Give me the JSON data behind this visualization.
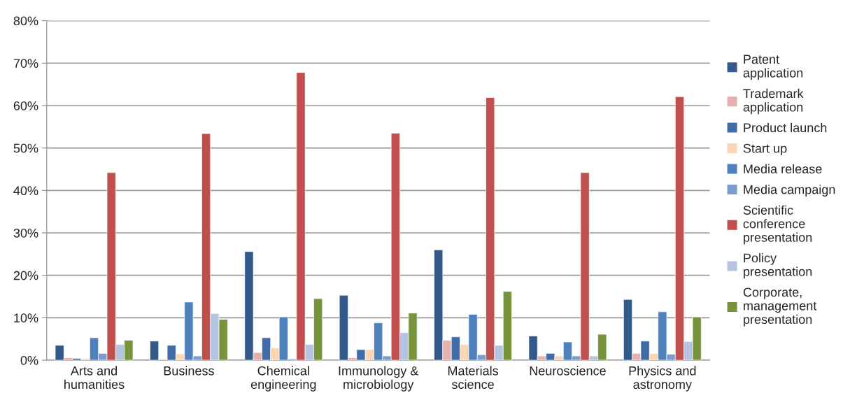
{
  "chart_data": {
    "type": "bar",
    "categories": [
      "Arts and\nhumanities",
      "Business",
      "Chemical\nengineering",
      "Immunology &\nmicrobiology",
      "Materials\nscience",
      "Neuroscience",
      "Physics and\nastronomy"
    ],
    "series": [
      {
        "name": "Patent\napplication",
        "color": "#335a88",
        "values": [
          3.5,
          4.5,
          25.6,
          15.3,
          26.0,
          5.7,
          14.3
        ]
      },
      {
        "name": "Trademark\napplication",
        "color": "#e6b0b0",
        "values": [
          0.6,
          0.2,
          1.8,
          0.6,
          4.7,
          1.0,
          1.6
        ]
      },
      {
        "name": "Product launch",
        "color": "#3f6ca6",
        "values": [
          0.4,
          3.5,
          5.3,
          2.5,
          5.5,
          1.6,
          4.5
        ]
      },
      {
        "name": "Start up",
        "color": "#fcd5b4",
        "values": [
          0.4,
          1.5,
          2.9,
          2.5,
          3.7,
          1.0,
          1.6
        ]
      },
      {
        "name": "Media release",
        "color": "#4f81bd",
        "values": [
          5.3,
          13.7,
          10.2,
          8.8,
          10.8,
          4.3,
          11.4
        ]
      },
      {
        "name": "Media campaign",
        "color": "#7c9ccc",
        "values": [
          1.6,
          1.0,
          0.3,
          1.0,
          1.3,
          1.0,
          1.4
        ]
      },
      {
        "name": "Scientific\nconference\npresentation",
        "color": "#c0504d",
        "values": [
          44.2,
          53.4,
          67.8,
          53.5,
          61.9,
          44.2,
          62.1
        ]
      },
      {
        "name": "Policy\npresentation",
        "color": "#b4c4e0",
        "values": [
          3.7,
          11.0,
          3.7,
          6.5,
          3.5,
          1.0,
          4.4
        ]
      },
      {
        "name": "Corporate,\nmanagement\npresentation",
        "color": "#77933c",
        "values": [
          4.7,
          9.6,
          14.5,
          11.1,
          16.2,
          6.1,
          10.2
        ]
      }
    ],
    "ylim": [
      0,
      80
    ],
    "yticks": [
      {
        "value": 0,
        "label": "0%"
      },
      {
        "value": 10,
        "label": "10%"
      },
      {
        "value": 20,
        "label": "20%"
      },
      {
        "value": 30,
        "label": "30%"
      },
      {
        "value": 40,
        "label": "40%"
      },
      {
        "value": 50,
        "label": "50%"
      },
      {
        "value": 60,
        "label": "60%"
      },
      {
        "value": 70,
        "label": "70%"
      },
      {
        "value": 80,
        "label": "80%"
      }
    ],
    "grid": "y",
    "legend": "right"
  }
}
